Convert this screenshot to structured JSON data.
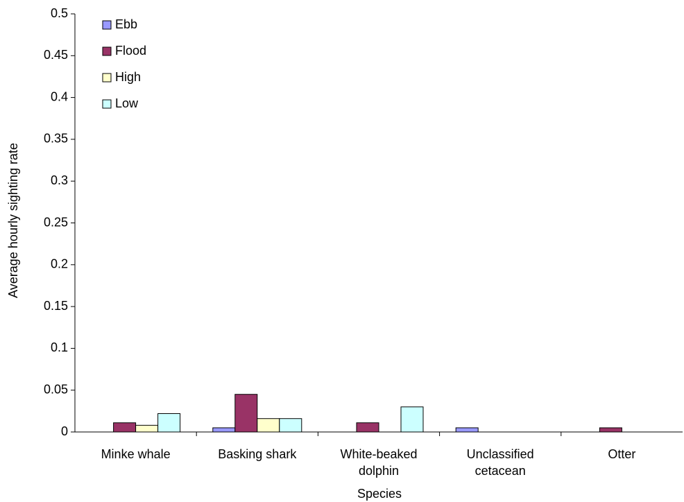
{
  "chart_data": {
    "type": "bar",
    "x_label": "Species",
    "y_label": "Average hourly sighting rate",
    "categories": [
      "Minke whale",
      "Basking shark",
      "White-beaked dolphin",
      "Unclassified cetacean",
      "Otter"
    ],
    "series": [
      {
        "name": "Ebb",
        "color": "#9999ff",
        "values": [
          0,
          0.005,
          0,
          0.005,
          0
        ]
      },
      {
        "name": "Flood",
        "color": "#993366",
        "values": [
          0.011,
          0.045,
          0.011,
          0,
          0.005
        ]
      },
      {
        "name": "High",
        "color": "#ffffcc",
        "values": [
          0.008,
          0.016,
          0,
          0,
          0
        ]
      },
      {
        "name": "Low",
        "color": "#ccffff",
        "values": [
          0.022,
          0.016,
          0.03,
          0,
          0
        ]
      }
    ],
    "ylim": [
      0,
      0.5
    ],
    "yticks": [
      0,
      0.05,
      0.1,
      0.15,
      0.2,
      0.25,
      0.3,
      0.35,
      0.4,
      0.45,
      0.5
    ],
    "grid": false,
    "legend": "top-left"
  }
}
